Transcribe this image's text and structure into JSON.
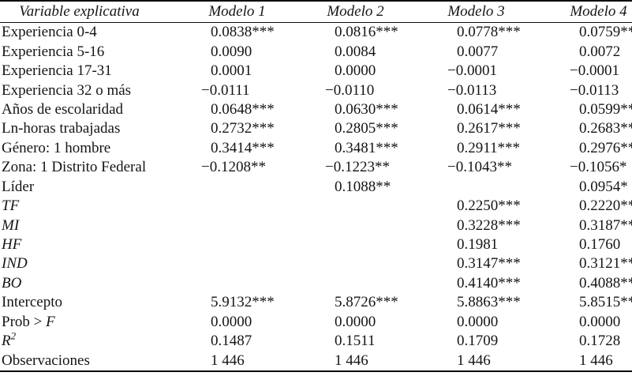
{
  "table": {
    "header": {
      "variable": "Variable explicativa",
      "modelo1": "Modelo 1",
      "modelo2": "Modelo 2",
      "modelo3": "Modelo 3",
      "modelo4": "Modelo 4"
    },
    "rows": [
      {
        "label": "Experiencia 0-4",
        "style": "normal",
        "values": [
          "0.0838***",
          "0.0816***",
          "0.0778***",
          "0.0759***"
        ]
      },
      {
        "label": "Experiencia 5-16",
        "style": "normal",
        "values": [
          "0.0090",
          "0.0084",
          "0.0077",
          "0.0072"
        ]
      },
      {
        "label": "Experiencia 17-31",
        "style": "normal",
        "values": [
          "0.0001",
          "0.0000",
          "−0.0001",
          "−0.0001"
        ]
      },
      {
        "label": "Experiencia 32 o más",
        "style": "normal",
        "values": [
          "−0.0111",
          "−0.0110",
          "−0.0113",
          "−0.0113"
        ]
      },
      {
        "label": "Años de escolaridad",
        "style": "normal",
        "values": [
          "0.0648***",
          "0.0630***",
          "0.0614***",
          "0.0599***"
        ]
      },
      {
        "label": "Ln-horas trabajadas",
        "style": "normal",
        "values": [
          "0.2732***",
          "0.2805***",
          "0.2617***",
          "0.2683***"
        ]
      },
      {
        "label": "Género: 1 hombre",
        "style": "normal",
        "values": [
          "0.3414***",
          "0.3481***",
          "0.2911***",
          "0.2976***"
        ]
      },
      {
        "label": "Zona: 1 Distrito Federal",
        "style": "normal",
        "values": [
          "−0.1208**",
          "−0.1223**",
          "−0.1043**",
          "−0.1056*"
        ]
      },
      {
        "label": "Líder",
        "style": "normal",
        "values": [
          "",
          "0.1088**",
          "",
          "0.0954*"
        ]
      },
      {
        "label": "TF",
        "style": "italic",
        "values": [
          "",
          "",
          "0.2250***",
          "0.2220***"
        ]
      },
      {
        "label": "MI",
        "style": "italic",
        "values": [
          "",
          "",
          "0.3228***",
          "0.3187***"
        ]
      },
      {
        "label": "HF",
        "style": "italic",
        "values": [
          "",
          "",
          "0.1981",
          "0.1760"
        ]
      },
      {
        "label": "IND",
        "style": "italic",
        "values": [
          "",
          "",
          "0.3147***",
          "0.3121***"
        ]
      },
      {
        "label": "BO",
        "style": "italic",
        "values": [
          "",
          "",
          "0.4140***",
          "0.4088***"
        ]
      },
      {
        "label": "Intercepto",
        "style": "normal",
        "values": [
          "5.9132***",
          "5.8726***",
          "5.8863***",
          "5.8515***"
        ]
      },
      {
        "label": "Prob > ",
        "label_italic_tail": "F",
        "style": "normal",
        "values": [
          "0.0000",
          "0.0000",
          "0.0000",
          "0.0000"
        ]
      },
      {
        "label": "",
        "label_italic_tail": "R",
        "label_sup": "2",
        "style": "normal",
        "values": [
          "0.1487",
          "0.1511",
          "0.1709",
          "0.1728"
        ]
      },
      {
        "label": "Observaciones",
        "style": "normal",
        "values": [
          "1 446",
          "1 446",
          "1 446",
          "1 446"
        ]
      }
    ]
  }
}
